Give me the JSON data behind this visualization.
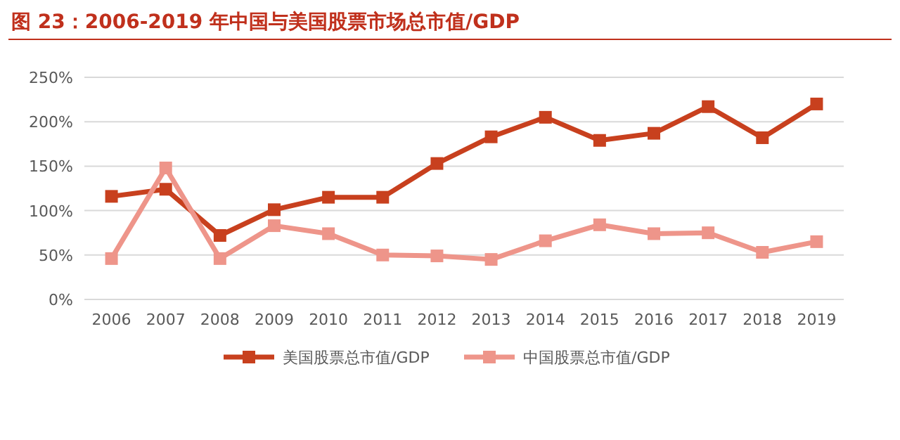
{
  "chart_data": {
    "type": "line",
    "title": "图 23：2006-2019 年中国与美国股票市场总市值/GDP",
    "categories": [
      "2006",
      "2007",
      "2008",
      "2009",
      "2010",
      "2011",
      "2012",
      "2013",
      "2014",
      "2015",
      "2016",
      "2017",
      "2018",
      "2019"
    ],
    "series": [
      {
        "name": "美国股票总市值/GDP",
        "color": "#c8401e",
        "values": [
          116,
          124,
          72,
          101,
          115,
          115,
          153,
          183,
          205,
          179,
          187,
          217,
          182,
          220
        ]
      },
      {
        "name": "中国股票总市值/GDP",
        "color": "#ee958a",
        "values": [
          46,
          148,
          46,
          83,
          74,
          50,
          49,
          45,
          66,
          84,
          74,
          75,
          53,
          65
        ]
      }
    ],
    "ylim": [
      0,
      250
    ],
    "yticks": [
      {
        "value": 0,
        "label": "0%"
      },
      {
        "value": 50,
        "label": "50%"
      },
      {
        "value": 100,
        "label": "100%"
      },
      {
        "value": 150,
        "label": "150%"
      },
      {
        "value": 200,
        "label": "200%"
      },
      {
        "value": 250,
        "label": "250%"
      }
    ],
    "grid": "y",
    "legend": "bottom",
    "marker": "square",
    "line_style": "solid"
  }
}
